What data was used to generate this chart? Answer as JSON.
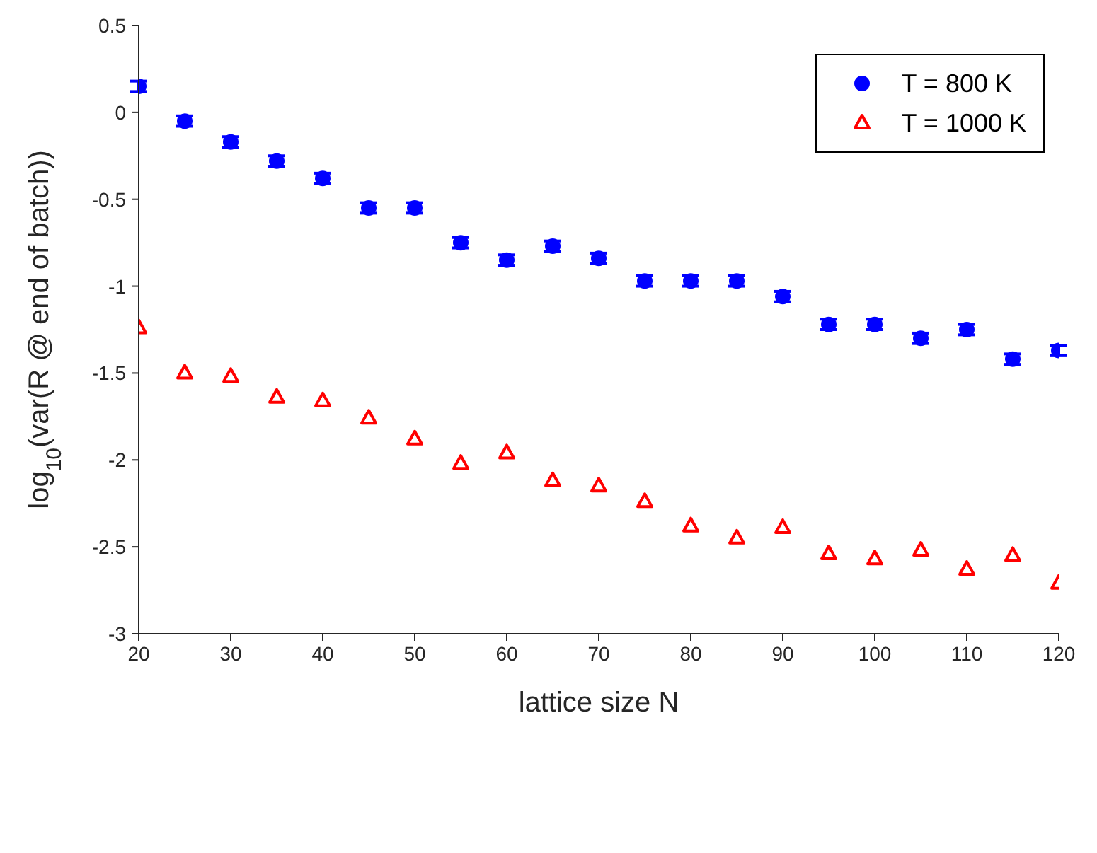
{
  "chart_data": {
    "type": "scatter",
    "xlabel": "lattice size N",
    "ylabel": "log$_{10}$(var(R @ end of batch))",
    "x": [
      20,
      25,
      30,
      35,
      40,
      45,
      50,
      55,
      60,
      65,
      70,
      75,
      80,
      85,
      90,
      95,
      100,
      105,
      110,
      115,
      120
    ],
    "series": [
      {
        "name": "T = 800 K",
        "color": "#0000ff",
        "marker": "circle",
        "values": [
          0.15,
          -0.05,
          -0.17,
          -0.28,
          -0.38,
          -0.55,
          -0.55,
          -0.75,
          -0.85,
          -0.77,
          -0.84,
          -0.97,
          -0.97,
          -0.97,
          -1.06,
          -1.22,
          -1.22,
          -1.3,
          -1.25,
          -1.42,
          -1.37
        ],
        "errors": [
          0.03,
          0.03,
          0.03,
          0.03,
          0.03,
          0.03,
          0.03,
          0.03,
          0.03,
          0.03,
          0.03,
          0.03,
          0.03,
          0.03,
          0.03,
          0.03,
          0.03,
          0.03,
          0.03,
          0.03,
          0.03
        ]
      },
      {
        "name": "T = 1000 K",
        "color": "#ff0000",
        "marker": "triangle",
        "values": [
          -1.24,
          -1.5,
          -1.52,
          -1.64,
          -1.66,
          -1.76,
          -1.88,
          -2.02,
          -1.96,
          -2.12,
          -2.15,
          -2.24,
          -2.38,
          -2.45,
          -2.39,
          -2.54,
          -2.57,
          -2.52,
          -2.63,
          -2.55,
          -2.71
        ]
      }
    ],
    "xlim": [
      20,
      120
    ],
    "xticks": [
      20,
      30,
      40,
      50,
      60,
      70,
      80,
      90,
      100,
      110,
      120
    ],
    "ylim": [
      -3,
      0.5
    ],
    "yticks": [
      -3,
      -2.5,
      -2,
      -1.5,
      -1,
      -0.5,
      0,
      0.5
    ],
    "grid": false,
    "legend": "top right"
  }
}
